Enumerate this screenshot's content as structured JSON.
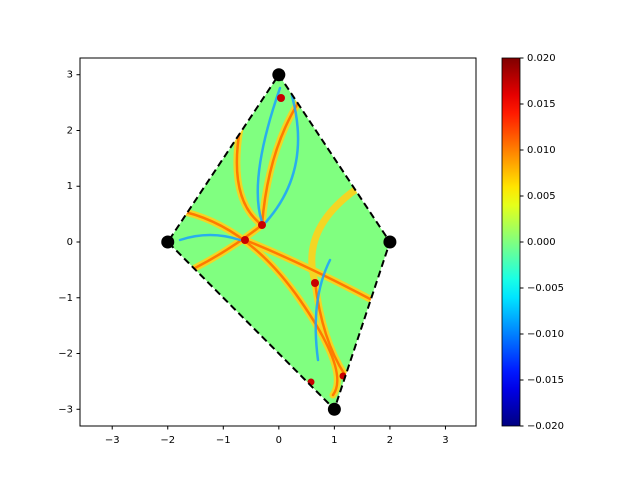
{
  "chart_data": {
    "type": "polygon",
    "x": [
      0,
      2,
      1,
      -2
    ],
    "y": [
      3,
      0,
      -3,
      0
    ],
    "xlim": [
      -3.58,
      3.55
    ],
    "ylim": [
      -3.3,
      3.3
    ],
    "xticks": [
      {
        "value": -3,
        "label": "−3"
      },
      {
        "value": -2,
        "label": "−2"
      },
      {
        "value": -1,
        "label": "−1"
      },
      0,
      1,
      2,
      3
    ],
    "yticks": [
      {
        "value": -3,
        "label": "−3"
      },
      {
        "value": -2,
        "label": "−2"
      },
      {
        "value": -1,
        "label": "−1"
      },
      0,
      1,
      2,
      3
    ],
    "line_style": "dashed",
    "line_color": "#000000",
    "marker_color": "#000000",
    "colormap": "jet",
    "clim": [
      -0.02,
      0.02
    ],
    "colorbar_ticks": [
      {
        "value": -0.02,
        "label": "−0.020"
      },
      {
        "value": -0.015,
        "label": "−0.015"
      },
      {
        "value": -0.01,
        "label": "−0.010"
      },
      {
        "value": -0.005,
        "label": "−0.005"
      },
      {
        "value": 0,
        "label": "0.000"
      },
      {
        "value": 0.005,
        "label": "0.005"
      },
      {
        "value": 0.01,
        "label": "0.010"
      },
      {
        "value": 0.015,
        "label": "0.015"
      },
      {
        "value": 0.02,
        "label": "0.020"
      }
    ]
  }
}
